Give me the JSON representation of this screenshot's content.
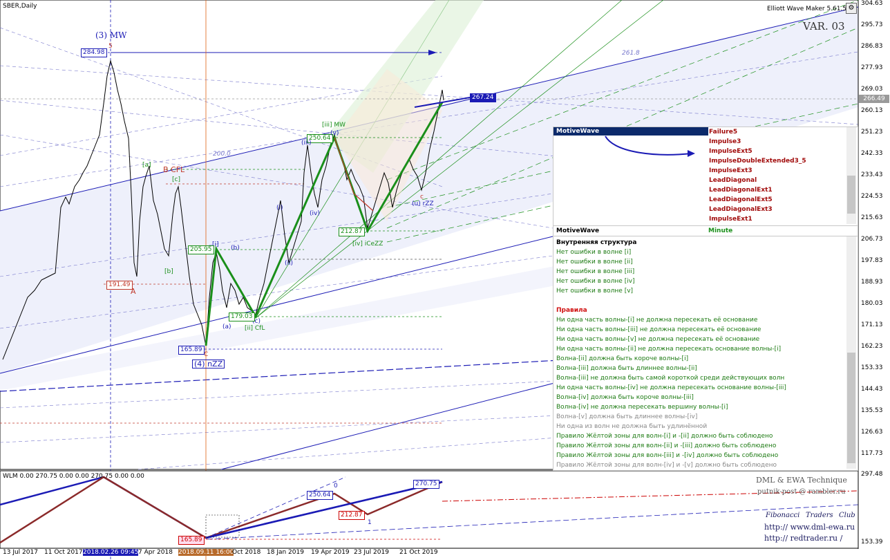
{
  "window": {
    "symbol_title": "SBER,Daily",
    "indicator_title": "Elliott Wave Maker 5.61.5",
    "variant": "VAR. 03"
  },
  "price_axis": [
    "304.63",
    "295.73",
    "286.83",
    "277.93",
    "269.03",
    "260.13",
    "251.23",
    "242.33",
    "233.43",
    "224.53",
    "215.63",
    "206.73",
    "197.83",
    "188.93",
    "180.03",
    "171.13",
    "162.23",
    "153.33",
    "144.43",
    "135.53",
    "126.63",
    "117.73"
  ],
  "current_price": "266.49",
  "sub_axis": [
    "297.48",
    "153.39"
  ],
  "time_axis": [
    "13 Jul 2017",
    "11 Oct 2017",
    "2018.02.26 09:45",
    "7 Apr 2018",
    "2018.09.11 16:00",
    "Oct 2018",
    "18 Jan 2019",
    "19 Apr 2019",
    "23 Jul 2019",
    "21 Oct 2019"
  ],
  "wave_labels": {
    "mw3": "(3) MW",
    "top5": "5",
    "price_top": "284.98",
    "A": "A",
    "price_A": "191.49",
    "bcfl": "B CFL",
    "a_br": "[a]",
    "c_br": "[c]",
    "b_br": "[b]",
    "C": "C",
    "price_C": "165.89",
    "zz4": "(4) nZZ",
    "i1": "[i]",
    "price_i": "205.95",
    "b_par": "(b)",
    "a_par": "(a)",
    "c_par": "(c)",
    "price_ii": "179.03",
    "ii_cfl": "[ii] CfL",
    "iii_mw": "[iii] MW",
    "price_iii": "250.64",
    "iv_zz": "[iv] iCeZZ",
    "price_iv": "212.87",
    "ii_small": "(ii)",
    "iv_small": "(iv)",
    "i_small": "(i)",
    "iii_small": "(iii)",
    "v_small": "(v)",
    "u_zz": "(u) rZZ",
    "price_target": "267.24",
    "fan_200": "200.0",
    "fan_261": "261.8",
    "c_small": "c"
  },
  "panel": {
    "header": "MotiveWave",
    "options": [
      "Failure5",
      "Impulse3",
      "ImpulseExt5",
      "ImpulseDoubleExtended3_5",
      "ImpulseExt3",
      "LeadDiagonal",
      "LeadDiagonalExt1",
      "LeadDiagonalExt5",
      "LeadDiagonalExt3",
      "ImpulseExt1"
    ],
    "sep_left": "MotiveWave",
    "sep_right": "Minute",
    "structure_title": "Внутренняя структура",
    "structure": [
      "Нет ошибки в волне [i]",
      "Нет ошибки в волне [ii]",
      "Нет ошибки в волне [iii]",
      "Нет ошибки в волне [iv]",
      "Нет ошибки в волне [v]"
    ],
    "rules_title": "Правила",
    "rules": [
      {
        "t": "Ни одна часть волны-[i] не должна пересекать её основание",
        "c": "#1c7a12"
      },
      {
        "t": "Ни одна часть волны-[iii] не должна пересекать её основание",
        "c": "#1c7a12"
      },
      {
        "t": "Ни одна часть волны-[v] не должна пересекать её основание",
        "c": "#1c7a12"
      },
      {
        "t": "Ни одна часть волны-[ii] не должна пересекать основание волны-[i]",
        "c": "#1c7a12"
      },
      {
        "t": "Волна-[ii] должна быть короче волны-[i]",
        "c": "#1c7a12"
      },
      {
        "t": "Волна-[iii] должна быть длиннее волны-[ii]",
        "c": "#1c7a12"
      },
      {
        "t": "Волна-[iii] не должна быть самой короткой среди действующих волн",
        "c": "#1c7a12"
      },
      {
        "t": "Ни одна часть волны-[iv] не должна пересекать основание волны-[iii]",
        "c": "#1c7a12"
      },
      {
        "t": "Волна-[iv] должна быть короче волны-[iii]",
        "c": "#1c7a12"
      },
      {
        "t": "Волна-[iv] не должна пересекать вершину волны-[i]",
        "c": "#1c7a12"
      },
      {
        "t": "Волна-[v] должна быть длиннее волны-[iv]",
        "c": "#888888"
      },
      {
        "t": "Ни одна из волн не должна быть удлинённой",
        "c": "#888888"
      },
      {
        "t": "Правило Жёлтой зоны для волн-[i] и -[ii] должно быть соблюдено",
        "c": "#1c7a12"
      },
      {
        "t": "Правило Жёлтой зоны для волн-[ii] и -[iii] должно быть соблюдено",
        "c": "#1c7a12"
      },
      {
        "t": "Правило Жёлтой зоны для волн-[iii] и -[iv] должно быть соблюдено",
        "c": "#1c7a12"
      },
      {
        "t": "Правило Жёлтой зоны для волн-[iv] и -[v] должно быть соблюдено",
        "c": "#888888"
      }
    ]
  },
  "subwindow": {
    "title": "WLM 0.00 270.75 0.00 0.00 270.75 0.00 0.00",
    "labels": {
      "p1": "250.64",
      "p2": "212.87",
      "p3": "270.75",
      "p4": "165.89",
      "z0": "0",
      "z1": "1"
    }
  },
  "branding": {
    "line1": "DML & EWA Technique",
    "line2": "putnik-post @ rambler.ru",
    "line3a": "Fibonacci",
    "line3b": "Traders",
    "line3c": "Club",
    "line4": "http://  www.dml-ewa.ru",
    "line5": "http://  redtrader.ru  /"
  },
  "colors": {
    "bull": "#1a8f1a",
    "bear": "#c0392b",
    "channel": "#1b1bb5",
    "accent": "#0c2a6b"
  }
}
